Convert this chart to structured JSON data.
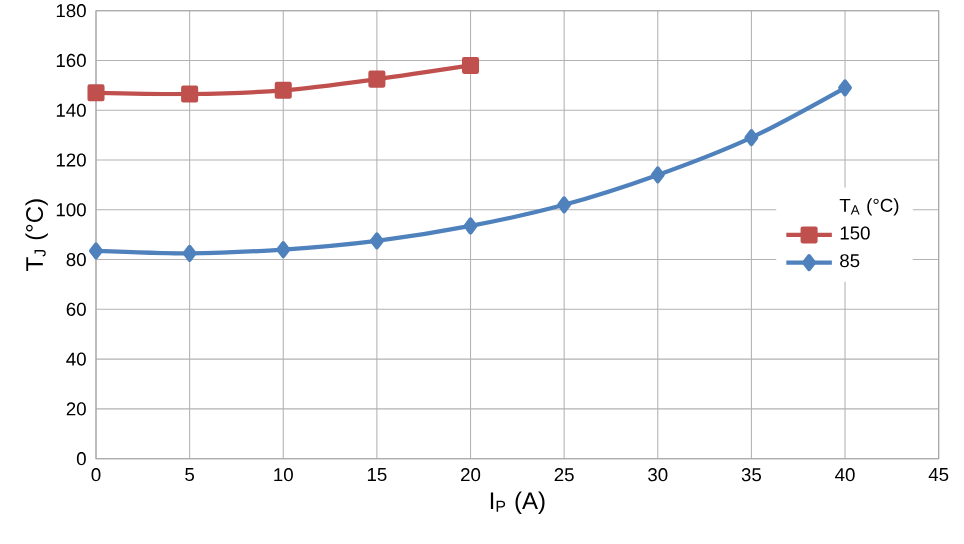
{
  "chart_data": {
    "type": "line",
    "xlabel": "I$_{P}$ (A)",
    "ylabel": "T$_{J}$ (°C)",
    "legend_title": "T$_{A}$ (°C)",
    "xlim": [
      0,
      45
    ],
    "xticks": [
      0,
      5,
      10,
      15,
      20,
      25,
      30,
      35,
      40,
      45
    ],
    "ylim": [
      0,
      180
    ],
    "yticks": [
      0,
      20,
      40,
      60,
      80,
      100,
      120,
      140,
      160,
      180
    ],
    "grid": true,
    "legend": "right",
    "series": [
      {
        "name": "150",
        "color": "#c0504d",
        "marker": "square",
        "x": [
          0,
          5,
          10,
          15,
          20
        ],
        "values": [
          147,
          146.5,
          148,
          152.5,
          158
        ]
      },
      {
        "name": "85",
        "color": "#4f81bd",
        "marker": "diamond",
        "x": [
          0,
          5,
          10,
          15,
          20,
          25,
          30,
          35,
          40
        ],
        "values": [
          83.5,
          82.5,
          84,
          87.5,
          93.5,
          102,
          114,
          129,
          149
        ]
      }
    ]
  }
}
